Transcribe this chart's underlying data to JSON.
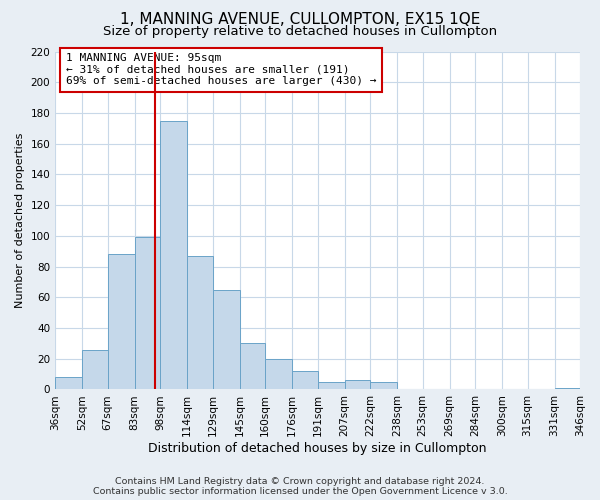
{
  "title": "1, MANNING AVENUE, CULLOMPTON, EX15 1QE",
  "subtitle": "Size of property relative to detached houses in Cullompton",
  "xlabel": "Distribution of detached houses by size in Cullompton",
  "ylabel": "Number of detached properties",
  "bar_edges": [
    36,
    52,
    67,
    83,
    98,
    114,
    129,
    145,
    160,
    176,
    191,
    207,
    222,
    238,
    253,
    269,
    284,
    300,
    315,
    331,
    346
  ],
  "bar_heights": [
    8,
    26,
    88,
    99,
    175,
    87,
    65,
    30,
    20,
    12,
    5,
    6,
    5,
    0,
    0,
    0,
    0,
    0,
    0,
    1
  ],
  "bar_color": "#c5d8ea",
  "bar_edge_color": "#6aa3c8",
  "property_line_x": 95,
  "property_line_color": "#cc0000",
  "annotation_line1": "1 MANNING AVENUE: 95sqm",
  "annotation_line2": "← 31% of detached houses are smaller (191)",
  "annotation_line3": "69% of semi-detached houses are larger (430) →",
  "ylim": [
    0,
    220
  ],
  "yticks": [
    0,
    20,
    40,
    60,
    80,
    100,
    120,
    140,
    160,
    180,
    200,
    220
  ],
  "tick_labels": [
    "36sqm",
    "52sqm",
    "67sqm",
    "83sqm",
    "98sqm",
    "114sqm",
    "129sqm",
    "145sqm",
    "160sqm",
    "176sqm",
    "191sqm",
    "207sqm",
    "222sqm",
    "238sqm",
    "253sqm",
    "269sqm",
    "284sqm",
    "300sqm",
    "315sqm",
    "331sqm",
    "346sqm"
  ],
  "footer_line1": "Contains HM Land Registry data © Crown copyright and database right 2024.",
  "footer_line2": "Contains public sector information licensed under the Open Government Licence v 3.0.",
  "background_color": "#e8eef4",
  "plot_bg_color": "#ffffff",
  "grid_color": "#c8d8e8",
  "title_fontsize": 11,
  "subtitle_fontsize": 9.5,
  "xlabel_fontsize": 9,
  "ylabel_fontsize": 8,
  "tick_fontsize": 7.5,
  "annot_fontsize": 8,
  "footer_fontsize": 6.8
}
